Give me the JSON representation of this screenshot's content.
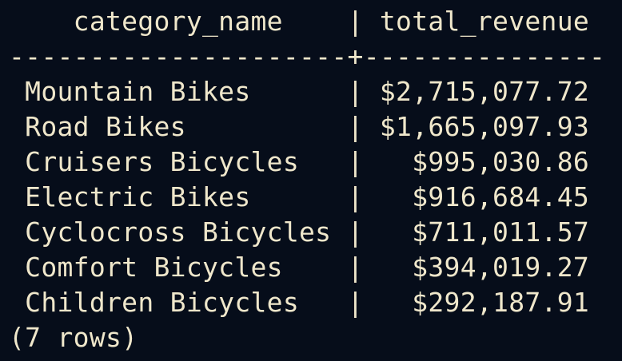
{
  "query_result": {
    "header_line": "    category_name    | total_revenue",
    "separator_line": "---------------------+---------------",
    "rows": [
      " Mountain Bikes      | $2,715,077.72",
      " Road Bikes          | $1,665,097.93",
      " Cruisers Bicycles   |   $995,030.86",
      " Electric Bikes      |   $916,684.45",
      " Cyclocross Bicycles |   $711,011.57",
      " Comfort Bicycles    |   $394,019.27",
      " Children Bicycles   |   $292,187.91"
    ],
    "row_count": "(7 rows)"
  },
  "colors": {
    "background": "#060d1a",
    "text": "#efe7cb"
  }
}
